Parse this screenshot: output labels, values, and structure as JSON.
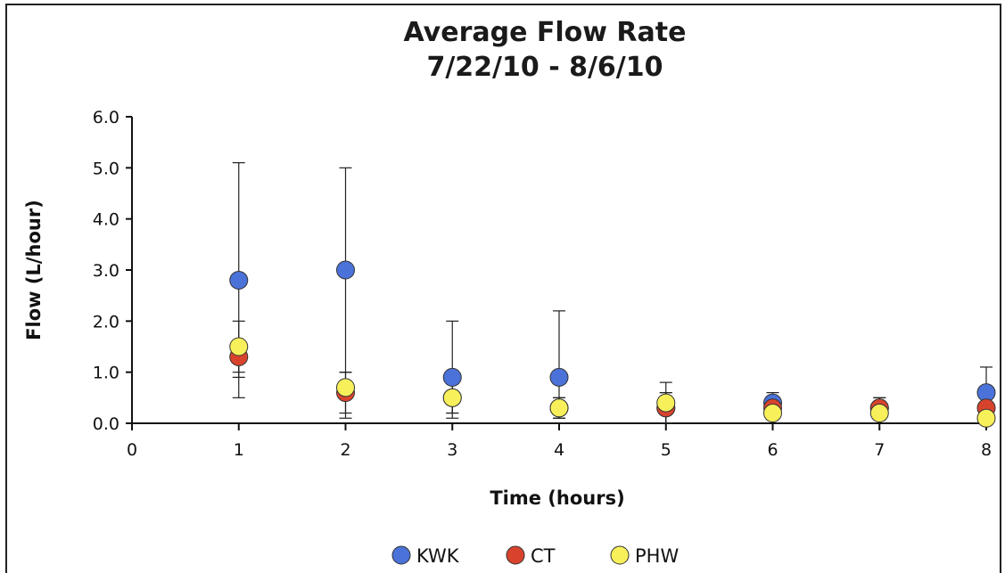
{
  "chart_data": {
    "type": "scatter",
    "title": "Average Flow Rate",
    "subtitle": "7/22/10 - 8/6/10",
    "xlabel": "Time (hours)",
    "ylabel": "Flow (L/hour)",
    "xlim": [
      0,
      8
    ],
    "ylim": [
      0,
      6
    ],
    "x_ticks": [
      "0",
      "1",
      "2",
      "3",
      "4",
      "5",
      "6",
      "7",
      "8"
    ],
    "y_ticks": [
      "0.0",
      "1.0",
      "2.0",
      "3.0",
      "4.0",
      "5.0",
      "6.0"
    ],
    "grid": false,
    "legend_position": "bottom",
    "series": [
      {
        "name": "KWK",
        "color": "#4a72d8",
        "x": [
          1,
          2,
          3,
          4,
          5,
          6,
          7,
          8
        ],
        "y": [
          2.8,
          3.0,
          0.9,
          0.9,
          0.3,
          0.4,
          0.3,
          0.6
        ],
        "err_low": [
          0.5,
          1.0,
          0.2,
          0.2,
          0.0,
          0.2,
          0.1,
          0.1
        ],
        "err_high": [
          5.1,
          5.0,
          2.0,
          2.2,
          0.6,
          0.6,
          0.5,
          1.1
        ]
      },
      {
        "name": "CT",
        "color": "#d8432e",
        "x": [
          1,
          2,
          3,
          4,
          5,
          6,
          7,
          8
        ],
        "y": [
          1.3,
          0.6,
          0.5,
          0.3,
          0.3,
          0.3,
          0.3,
          0.3
        ],
        "err_low": [
          1.0,
          0.2,
          0.2,
          0.1,
          0.0,
          0.1,
          0.1,
          0.0
        ],
        "err_high": [
          1.6,
          1.0,
          0.8,
          0.5,
          0.6,
          0.5,
          0.5,
          0.6
        ]
      },
      {
        "name": "PHW",
        "color": "#f7f05a",
        "x": [
          1,
          2,
          3,
          4,
          5,
          6,
          7,
          8
        ],
        "y": [
          1.5,
          0.7,
          0.5,
          0.3,
          0.4,
          0.2,
          0.2,
          0.1
        ],
        "err_low": [
          0.9,
          0.1,
          0.1,
          0.1,
          0.0,
          0.1,
          0.1,
          0.0
        ],
        "err_high": [
          2.0,
          1.0,
          0.8,
          0.5,
          0.8,
          0.3,
          0.3,
          0.2
        ]
      }
    ]
  }
}
